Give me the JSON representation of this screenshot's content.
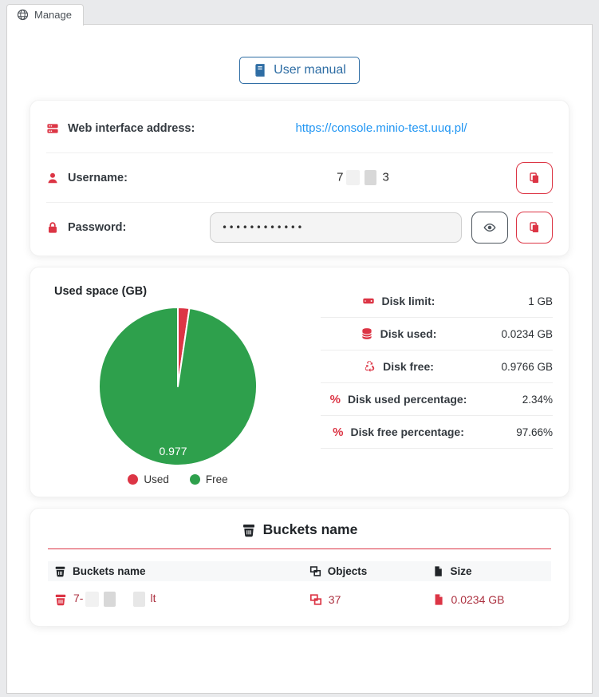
{
  "tab": {
    "label": "Manage"
  },
  "toolbar": {
    "user_manual_label": "User manual"
  },
  "credentials": {
    "web_address_label": "Web interface address:",
    "web_address_url": "https://console.minio-test.uuq.pl/",
    "username_label": "Username:",
    "username_prefix": "7",
    "username_suffix": "3",
    "password_label": "Password:",
    "password_masked": "••••••••••••"
  },
  "chart_data": {
    "type": "pie",
    "title": "Used space (GB)",
    "labels": [
      "Used",
      "Free"
    ],
    "values": [
      0.0234,
      0.9766
    ],
    "unit": "GB",
    "colors": [
      "#dc3545",
      "#2ea04c"
    ],
    "slice_label": "0.977",
    "legend": [
      "Used",
      "Free"
    ],
    "legend_position": "bottom"
  },
  "usage": {
    "stats": [
      {
        "icon": "hdd-icon",
        "label": "Disk limit:",
        "value": "1 GB"
      },
      {
        "icon": "database-icon",
        "label": "Disk used:",
        "value": "0.0234 GB"
      },
      {
        "icon": "recycle-icon",
        "label": "Disk free:",
        "value": "0.9766 GB"
      },
      {
        "icon": "percent-icon",
        "label": "Disk used percentage:",
        "value": "2.34%"
      },
      {
        "icon": "percent-icon",
        "label": "Disk free percentage:",
        "value": "97.66%"
      }
    ]
  },
  "buckets": {
    "title": "Buckets name",
    "columns": [
      "Buckets name",
      "Objects",
      "Size"
    ],
    "rows": [
      {
        "name_prefix": "7-",
        "name_suffix": "lt",
        "objects": "37",
        "size": "0.0234 GB"
      }
    ]
  },
  "colors": {
    "accent_red": "#dc3545",
    "green": "#2ea04c",
    "link_blue": "#2196f3",
    "button_blue": "#2e6da4",
    "value_dark_red": "#ac3140"
  }
}
